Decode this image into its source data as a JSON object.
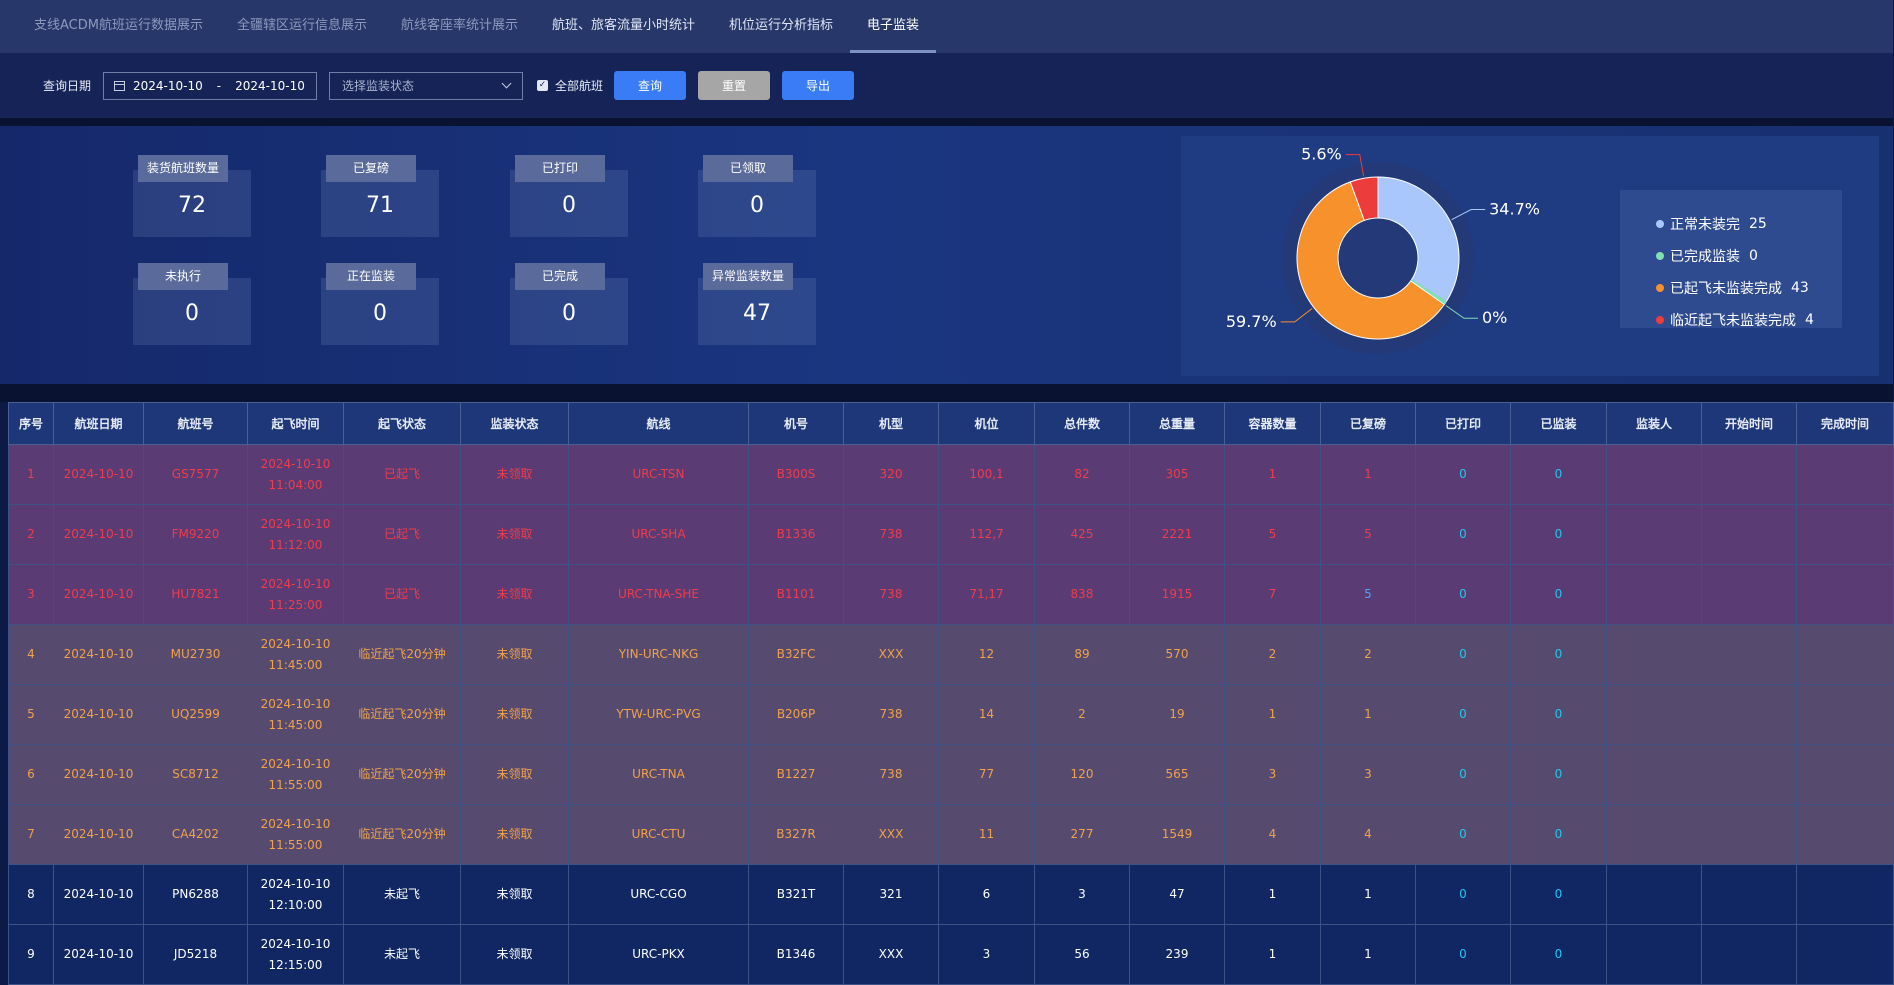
{
  "nav": {
    "tabs": [
      {
        "label": "支线ACDM航班运行数据展示",
        "state": "dim"
      },
      {
        "label": "全疆辖区运行信息展示",
        "state": "dim"
      },
      {
        "label": "航线客座率统计展示",
        "state": "dim"
      },
      {
        "label": "航班、旅客流量小时统计",
        "state": "light"
      },
      {
        "label": "机位运行分析指标",
        "state": "light"
      },
      {
        "label": "电子监装",
        "state": "active"
      }
    ]
  },
  "filter": {
    "date_label": "查询日期",
    "date_start": "2024-10-10",
    "date_sep": "-",
    "date_end": "2024-10-10",
    "status_placeholder": "选择监装状态",
    "all_flights_label": "全部航班",
    "all_flights_checked": true,
    "query_button": "查询",
    "reset_button": "重置",
    "export_button": "导出"
  },
  "stats": [
    {
      "label": "装货航班数量",
      "value": "72"
    },
    {
      "label": "已复磅",
      "value": "71"
    },
    {
      "label": "已打印",
      "value": "0"
    },
    {
      "label": "已领取",
      "value": "0"
    },
    {
      "label": "未执行",
      "value": "0"
    },
    {
      "label": "正在监装",
      "value": "0"
    },
    {
      "label": "已完成",
      "value": "0"
    },
    {
      "label": "异常监装数量",
      "value": "47"
    }
  ],
  "chart_data": {
    "type": "pie",
    "categories": [
      "正常未装完",
      "已完成监装",
      "已起飞未监装完成",
      "临近起飞未监装完成"
    ],
    "values": [
      25,
      0,
      43,
      4
    ],
    "colors": [
      "#a9c7fb",
      "#7ee0b3",
      "#f7912b",
      "#ed3c3c"
    ],
    "slice_labels": [
      "34.7%",
      "0%",
      "59.7%",
      "5.6%"
    ],
    "legend": "right"
  },
  "table": {
    "headers": [
      "序号",
      "航班日期",
      "航班号",
      "起飞时间",
      "起飞状态",
      "监装状态",
      "航线",
      "机号",
      "机型",
      "机位",
      "总件数",
      "总重量",
      "容器数量",
      "已复磅",
      "已打印",
      "已监装",
      "监装人",
      "开始时间",
      "完成时间"
    ],
    "rows": [
      {
        "style": "red",
        "cells": [
          "1",
          "2024-10-10",
          "GS7577",
          "2024-10-10 11:04:00",
          "已起飞",
          "未领取",
          "URC-TSN",
          "B300S",
          "320",
          "100,1",
          "82",
          "305",
          "1",
          "1",
          "0",
          "0",
          "",
          "",
          ""
        ]
      },
      {
        "style": "red",
        "cells": [
          "2",
          "2024-10-10",
          "FM9220",
          "2024-10-10 11:12:00",
          "已起飞",
          "未领取",
          "URC-SHA",
          "B1336",
          "738",
          "112,7",
          "425",
          "2221",
          "5",
          "5",
          "0",
          "0",
          "",
          "",
          ""
        ]
      },
      {
        "style": "red",
        "cells": [
          "3",
          "2024-10-10",
          "HU7821",
          "2024-10-10 11:25:00",
          "已起飞",
          "未领取",
          "URC-TNA-SHE",
          "B1101",
          "738",
          "71,17",
          "838",
          "1915",
          "7",
          "5",
          "0",
          "0",
          "",
          "",
          ""
        ]
      },
      {
        "style": "orange",
        "cells": [
          "4",
          "2024-10-10",
          "MU2730",
          "2024-10-10 11:45:00",
          "临近起飞20分钟",
          "未领取",
          "YIN-URC-NKG",
          "B32FC",
          "XXX",
          "12",
          "89",
          "570",
          "2",
          "2",
          "0",
          "0",
          "",
          "",
          ""
        ]
      },
      {
        "style": "orange",
        "cells": [
          "5",
          "2024-10-10",
          "UQ2599",
          "2024-10-10 11:45:00",
          "临近起飞20分钟",
          "未领取",
          "YTW-URC-PVG",
          "B206P",
          "738",
          "14",
          "2",
          "19",
          "1",
          "1",
          "0",
          "0",
          "",
          "",
          ""
        ]
      },
      {
        "style": "orange",
        "cells": [
          "6",
          "2024-10-10",
          "SC8712",
          "2024-10-10 11:55:00",
          "临近起飞20分钟",
          "未领取",
          "URC-TNA",
          "B1227",
          "738",
          "77",
          "120",
          "565",
          "3",
          "3",
          "0",
          "0",
          "",
          "",
          ""
        ]
      },
      {
        "style": "orange",
        "cells": [
          "7",
          "2024-10-10",
          "CA4202",
          "2024-10-10 11:55:00",
          "临近起飞20分钟",
          "未领取",
          "URC-CTU",
          "B327R",
          "XXX",
          "11",
          "277",
          "1549",
          "4",
          "4",
          "0",
          "0",
          "",
          "",
          ""
        ]
      },
      {
        "style": "normal",
        "cells": [
          "8",
          "2024-10-10",
          "PN6288",
          "2024-10-10 12:10:00",
          "未起飞",
          "未领取",
          "URC-CGO",
          "B321T",
          "321",
          "6",
          "3",
          "47",
          "1",
          "1",
          "0",
          "0",
          "",
          "",
          ""
        ]
      },
      {
        "style": "normal",
        "cells": [
          "9",
          "2024-10-10",
          "JD5218",
          "2024-10-10 12:15:00",
          "未起飞",
          "未领取",
          "URC-PKX",
          "B1346",
          "XXX",
          "3",
          "56",
          "239",
          "1",
          "1",
          "0",
          "0",
          "",
          "",
          ""
        ]
      }
    ]
  }
}
